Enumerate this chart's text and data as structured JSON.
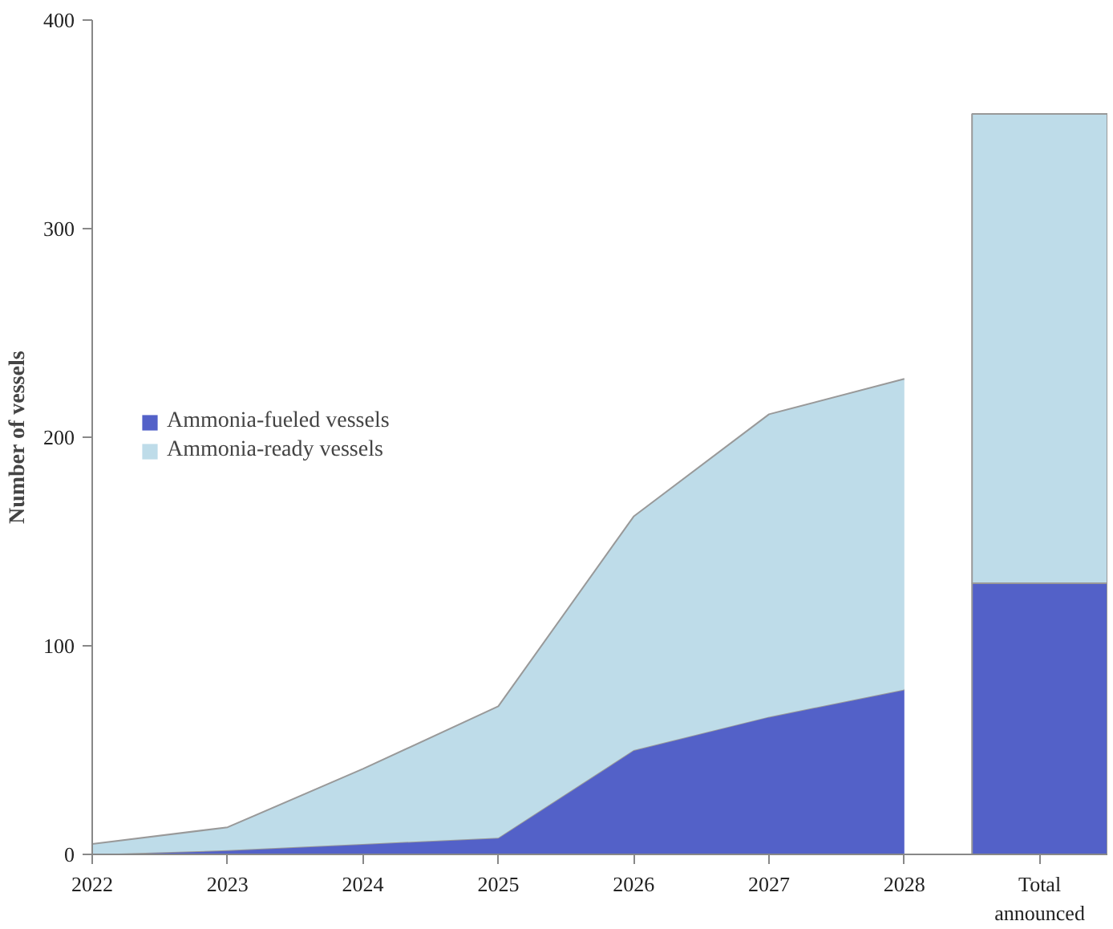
{
  "chart_data": {
    "type": "area",
    "ylabel": "Number of vessels",
    "categories": [
      "2022",
      "2023",
      "2024",
      "2025",
      "2026",
      "2027",
      "2028",
      "Total announced"
    ],
    "stacked": true,
    "ylim": [
      0,
      400
    ],
    "yticks": [
      0,
      100,
      200,
      300,
      400
    ],
    "grid": false,
    "legend": "left",
    "series": [
      {
        "name": "Ammonia-fueled vessels",
        "color": "#5361c8",
        "values": [
          0,
          2,
          5,
          8,
          50,
          66,
          79,
          null
        ]
      },
      {
        "name": "Ammonia-ready vessels",
        "color": "#bedce9",
        "values": [
          5,
          11,
          36,
          63,
          112,
          145,
          149,
          null
        ]
      },
      {
        "type": "bar",
        "color": "#5361c8",
        "values": [
          null,
          null,
          null,
          null,
          null,
          null,
          null,
          130
        ]
      },
      {
        "type": "bar",
        "color": "#bedce9",
        "values": [
          null,
          null,
          null,
          null,
          null,
          null,
          null,
          225
        ]
      }
    ]
  }
}
